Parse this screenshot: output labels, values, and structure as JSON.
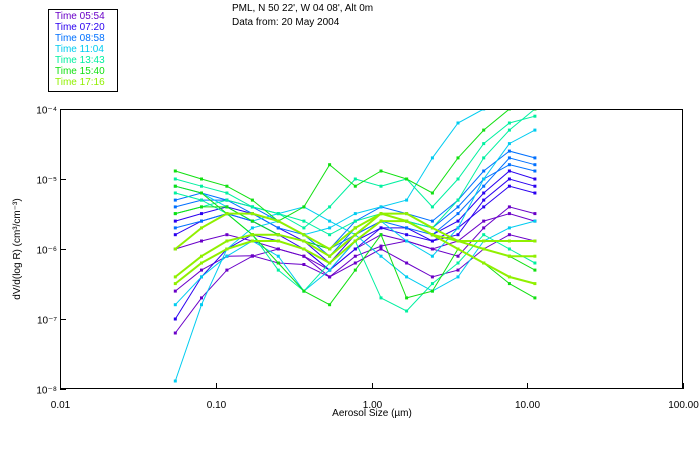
{
  "chart_data": {
    "type": "line",
    "title": "PML, N 50 22', W 04 08', Alt 0m",
    "subtitle": "Data from: 20 May 2004",
    "xlabel": "Aerosol Size (µm)",
    "ylabel": "dV/d(log R) (cm³/cm⁻³)",
    "xscale": "log",
    "yscale": "log",
    "xlim": [
      0.01,
      100
    ],
    "ylim": [
      1e-08,
      0.0001
    ],
    "xticks": [
      0.01,
      0.1,
      1,
      10,
      100
    ],
    "xtick_labels": [
      "0.01",
      "0.10",
      "1.00",
      "10.00",
      "100.00"
    ],
    "yticks": [
      0.0001,
      1e-05,
      1e-06,
      1e-07,
      1e-08
    ],
    "ytick_labels": [
      "10⁻⁴",
      "10⁻⁵",
      "10⁻⁶",
      "10⁻⁷",
      "10⁻⁸"
    ],
    "grid": false,
    "legend_placement": "top-left, outside",
    "legend": [
      {
        "label": "Time 05:54",
        "color": "#6a00c8"
      },
      {
        "label": "Time 07:20",
        "color": "#2a00f0"
      },
      {
        "label": "Time 08:58",
        "color": "#0070ff"
      },
      {
        "label": "Time 11:04",
        "color": "#00ccf0"
      },
      {
        "label": "Time 13:43",
        "color": "#00f0a0"
      },
      {
        "label": "Time 15:40",
        "color": "#10e010"
      },
      {
        "label": "Time 17:16",
        "color": "#90f000"
      }
    ],
    "x": [
      0.055,
      0.081,
      0.118,
      0.172,
      0.252,
      0.368,
      0.538,
      0.787,
      1.15,
      1.68,
      2.46,
      3.59,
      5.25,
      7.68,
      11.2
    ],
    "series": [
      {
        "name": "05:54",
        "group": 0,
        "values": [
          2.5e-07,
          5e-07,
          7.9e-07,
          8e-07,
          6.3e-07,
          6e-07,
          4e-07,
          7.9e-07,
          1.1e-06,
          1.3e-06,
          1e-06,
          7.9e-07,
          2e-06,
          4e-06,
          3.2e-06
        ]
      },
      {
        "name": "05:54",
        "group": 0,
        "values": [
          6.3e-08,
          2e-07,
          5e-07,
          7.9e-07,
          1e-06,
          7.9e-07,
          5e-07,
          1e-06,
          1.6e-06,
          1.3e-06,
          1e-06,
          1.3e-06,
          2.5e-06,
          3.2e-06,
          2.5e-06
        ]
      },
      {
        "name": "05:54",
        "group": 0,
        "values": [
          1e-06,
          1.3e-06,
          1.6e-06,
          1.3e-06,
          1e-06,
          7.9e-07,
          4e-07,
          6.3e-07,
          1e-06,
          6.3e-07,
          4e-07,
          5e-07,
          1e-06,
          1.6e-06,
          1.3e-06
        ]
      },
      {
        "name": "07:20",
        "group": 1,
        "values": [
          1.6e-06,
          2.5e-06,
          3.2e-06,
          2.5e-06,
          1.6e-06,
          1e-06,
          5e-07,
          1.3e-06,
          2e-06,
          2e-06,
          1.3e-06,
          2e-06,
          4e-06,
          7.9e-06,
          6.3e-06
        ]
      },
      {
        "name": "07:20",
        "group": 1,
        "values": [
          2.5e-06,
          3.2e-06,
          4e-06,
          3.2e-06,
          2e-06,
          1.3e-06,
          6.3e-07,
          1.6e-06,
          2.5e-06,
          2.5e-06,
          1.6e-06,
          2.5e-06,
          6.3e-06,
          1.3e-05,
          1e-05
        ]
      },
      {
        "name": "07:20",
        "group": 1,
        "values": [
          1e-07,
          4e-07,
          1e-06,
          1.6e-06,
          1.3e-06,
          1e-06,
          5e-07,
          1e-06,
          2e-06,
          1.6e-06,
          1.3e-06,
          1.6e-06,
          5e-06,
          1e-05,
          7.9e-06
        ]
      },
      {
        "name": "08:58",
        "group": 2,
        "values": [
          4e-06,
          5e-06,
          5e-06,
          4e-06,
          2.5e-06,
          1.6e-06,
          7.9e-07,
          2e-06,
          3.2e-06,
          2.5e-06,
          2e-06,
          4e-06,
          1e-05,
          1.6e-05,
          1.3e-05
        ]
      },
      {
        "name": "08:58",
        "group": 2,
        "values": [
          2e-06,
          2.5e-06,
          3.2e-06,
          2.5e-06,
          1.6e-06,
          1.3e-06,
          1e-06,
          1.6e-06,
          2.5e-06,
          2e-06,
          1.6e-06,
          3.2e-06,
          7.9e-06,
          2e-05,
          1.6e-05
        ]
      },
      {
        "name": "08:58",
        "group": 2,
        "values": [
          5e-06,
          6.3e-06,
          5e-06,
          3.2e-06,
          2e-06,
          1.6e-06,
          1e-06,
          2.5e-06,
          4e-06,
          3.2e-06,
          2.5e-06,
          5e-06,
          1.3e-05,
          2.5e-05,
          2e-05
        ]
      },
      {
        "name": "11:04",
        "group": 3,
        "values": [
          1.3e-08,
          1.6e-07,
          1e-06,
          2e-06,
          2.5e-06,
          1.6e-06,
          2e-06,
          3.2e-06,
          4e-06,
          5e-06,
          2e-05,
          6.3e-05,
          0.0001,
          0.0001,
          0.0001
        ]
      },
      {
        "name": "11:04",
        "group": 3,
        "values": [
          7.9e-06,
          6.3e-06,
          4e-06,
          2.5e-06,
          3.2e-06,
          4e-06,
          2.5e-06,
          1.6e-06,
          7.9e-07,
          4e-07,
          2.5e-07,
          4e-07,
          1.3e-06,
          2e-06,
          2.5e-06
        ]
      },
      {
        "name": "11:04",
        "group": 3,
        "values": [
          1.6e-07,
          4e-07,
          7.9e-07,
          1.3e-06,
          7.9e-07,
          2.5e-07,
          5e-07,
          1.3e-06,
          2.5e-06,
          1.3e-06,
          7.9e-07,
          2e-06,
          1e-05,
          3.2e-05,
          5e-05
        ]
      },
      {
        "name": "13:43",
        "group": 4,
        "values": [
          1e-05,
          7.9e-06,
          6.3e-06,
          4e-06,
          3.2e-06,
          2.5e-06,
          1.6e-06,
          2.5e-06,
          3.2e-06,
          2.5e-06,
          2e-06,
          5e-06,
          2e-05,
          5e-05,
          0.0001
        ]
      },
      {
        "name": "13:43",
        "group": 4,
        "values": [
          3.2e-06,
          4e-06,
          5e-06,
          4e-06,
          3.2e-06,
          2e-06,
          4e-06,
          1e-05,
          7.9e-06,
          1e-05,
          4e-06,
          1e-05,
          3.2e-05,
          6.3e-05,
          7.9e-05
        ]
      },
      {
        "name": "13:43",
        "group": 4,
        "values": [
          6.3e-06,
          5e-06,
          3.2e-06,
          1.6e-06,
          5e-07,
          2.5e-07,
          6.3e-07,
          1.3e-06,
          2e-07,
          1.3e-07,
          3.2e-07,
          6.3e-07,
          1.6e-06,
          1e-06,
          6.3e-07
        ]
      },
      {
        "name": "15:40",
        "group": 5,
        "values": [
          1.3e-05,
          1e-05,
          7.9e-06,
          5e-06,
          2.5e-06,
          4e-06,
          1.6e-05,
          7.9e-06,
          1.3e-05,
          1e-05,
          6.3e-06,
          2e-05,
          5e-05,
          0.0001,
          0.0001
        ]
      },
      {
        "name": "15:40",
        "group": 5,
        "values": [
          3.2e-06,
          4e-06,
          4e-06,
          2.5e-06,
          1.6e-06,
          1.3e-06,
          1e-06,
          2e-06,
          3.2e-06,
          2.5e-06,
          1.6e-06,
          1.3e-06,
          1e-06,
          7.9e-07,
          5e-07
        ]
      },
      {
        "name": "15:40",
        "group": 5,
        "values": [
          7.9e-06,
          6.3e-06,
          3.2e-06,
          1.6e-06,
          6.3e-07,
          2.5e-07,
          1.6e-07,
          5e-07,
          1.6e-06,
          2e-07,
          2.5e-07,
          1e-06,
          6.3e-07,
          3.2e-07,
          2e-07
        ]
      },
      {
        "name": "17:16",
        "group": 6,
        "values": [
          3.2e-07,
          6.3e-07,
          1e-06,
          1.3e-06,
          1.3e-06,
          1e-06,
          6.3e-07,
          1.3e-06,
          2.5e-06,
          2.5e-06,
          1.6e-06,
          1.3e-06,
          1.3e-06,
          1.3e-06,
          1.3e-06
        ]
      },
      {
        "name": "17:16",
        "group": 6,
        "values": [
          4e-07,
          7.9e-07,
          1.3e-06,
          1.6e-06,
          1.6e-06,
          1.3e-06,
          7.9e-07,
          1.6e-06,
          3.2e-06,
          3.2e-06,
          2e-06,
          1.3e-06,
          1e-06,
          7.9e-07,
          7.9e-07
        ]
      },
      {
        "name": "17:16",
        "group": 6,
        "values": [
          1e-06,
          2e-06,
          3.2e-06,
          3.2e-06,
          2.5e-06,
          1.6e-06,
          1e-06,
          2e-06,
          3.2e-06,
          2.5e-06,
          1.6e-06,
          1e-06,
          6.3e-07,
          4e-07,
          3.2e-07
        ]
      }
    ]
  }
}
